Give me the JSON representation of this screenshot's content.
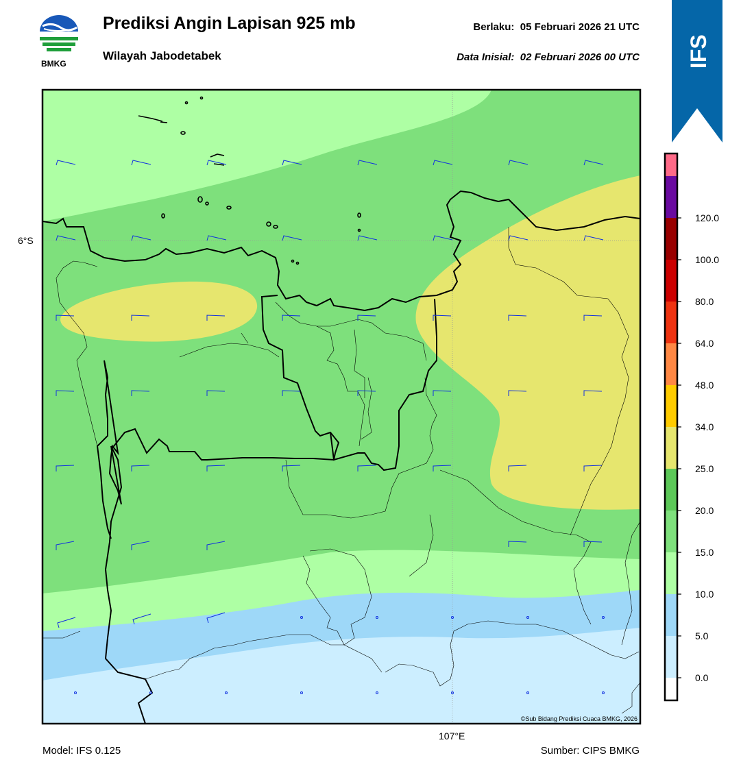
{
  "header": {
    "title": "Prediksi Angin Lapisan 925 mb",
    "subtitle": "Wilayah Jabodetabek",
    "valid_label": "Berlaku:",
    "valid_time": "05 Februari 2026 21 UTC",
    "init_label": "Data Inisial:",
    "init_time": "02 Februari 2026 00 UTC"
  },
  "logo": {
    "text": "BMKG",
    "icon": "bmkg-logo"
  },
  "ribbon": {
    "text": "IFS",
    "color": "#0566A8"
  },
  "map": {
    "lat_label": "6°S",
    "lon_label": "107°E",
    "credit": "©Sub Bidang Prediksi Cuaca BMKG, 2026"
  },
  "colorbar": {
    "levels": [
      "0.0",
      "5.0",
      "10.0",
      "15.0",
      "20.0",
      "25.0",
      "34.0",
      "48.0",
      "64.0",
      "80.0",
      "100.0",
      "120.0"
    ],
    "colors": [
      "#FFFFFF",
      "#CCEEFF",
      "#9ED8F8",
      "#AEFFA4",
      "#7EE07C",
      "#5CC858",
      "#E6E66E",
      "#FFCC00",
      "#FF8844",
      "#EE3311",
      "#CC0000",
      "#990000",
      "#6A0AA0",
      "#FF6A88"
    ]
  },
  "footer": {
    "model": "Model: IFS 0.125",
    "source": "Sumber: CIPS BMKG"
  }
}
